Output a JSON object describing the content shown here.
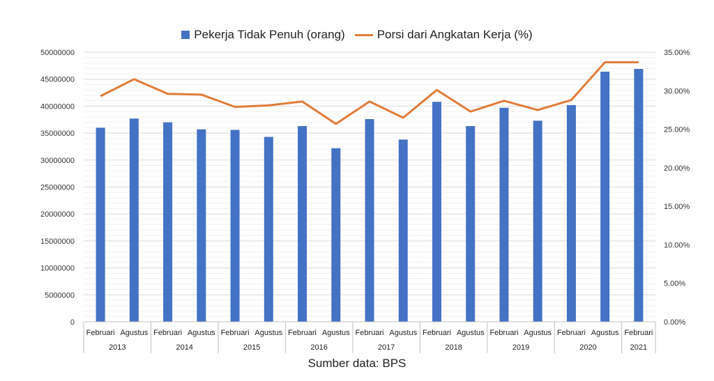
{
  "chart_data": {
    "type": "bar",
    "categories": [
      "Februari",
      "Agustus",
      "Februari",
      "Agustus",
      "Februari",
      "Agustus",
      "Februari",
      "Agustus",
      "Februari",
      "Agustus",
      "Februari",
      "Agustus",
      "Februari",
      "Agustus",
      "Februari",
      "Agustus",
      "Februari"
    ],
    "years": [
      {
        "label": "2013",
        "count": 2
      },
      {
        "label": "2014",
        "count": 2
      },
      {
        "label": "2015",
        "count": 2
      },
      {
        "label": "2016",
        "count": 2
      },
      {
        "label": "2017",
        "count": 2
      },
      {
        "label": "2018",
        "count": 2
      },
      {
        "label": "2019",
        "count": 2
      },
      {
        "label": "2020",
        "count": 2
      },
      {
        "label": "2021",
        "count": 1
      }
    ],
    "series": [
      {
        "name": "Pekerja Tidak Penuh (orang)",
        "type": "bar",
        "axis": "left",
        "color": "#4472C4",
        "values": [
          36000000,
          37700000,
          37000000,
          35700000,
          35600000,
          34300000,
          36300000,
          32200000,
          37600000,
          33800000,
          40800000,
          36300000,
          39700000,
          37300000,
          40200000,
          46400000,
          46900000
        ]
      },
      {
        "name": "Porsi dari Angkatan Kerja (%)",
        "type": "line",
        "axis": "right",
        "color": "#E07B39",
        "values": [
          29.3,
          31.5,
          29.6,
          29.5,
          27.9,
          28.1,
          28.6,
          25.7,
          28.6,
          26.5,
          30.1,
          27.3,
          28.7,
          27.5,
          28.8,
          33.7,
          33.7
        ]
      }
    ],
    "ylim_left": [
      0,
      50000000
    ],
    "ylim_right": [
      0,
      35
    ],
    "yticks_left": [
      "0",
      "5000000",
      "10000000",
      "15000000",
      "20000000",
      "25000000",
      "30000000",
      "35000000",
      "40000000",
      "45000000",
      "50000000"
    ],
    "yticks_right": [
      "0.00%",
      "5.00%",
      "10.00%",
      "15.00%",
      "20.00%",
      "25.00%",
      "30.00%",
      "35.00%"
    ],
    "grid": true,
    "legend_position": "top-center"
  },
  "legend": {
    "bar_label": "Pekerja Tidak Penuh (orang)",
    "line_label": "Porsi dari Angkatan Kerja (%)",
    "bar_color": "#4472C4",
    "line_color": "#E07B39"
  },
  "source": "Sumber data: BPS"
}
